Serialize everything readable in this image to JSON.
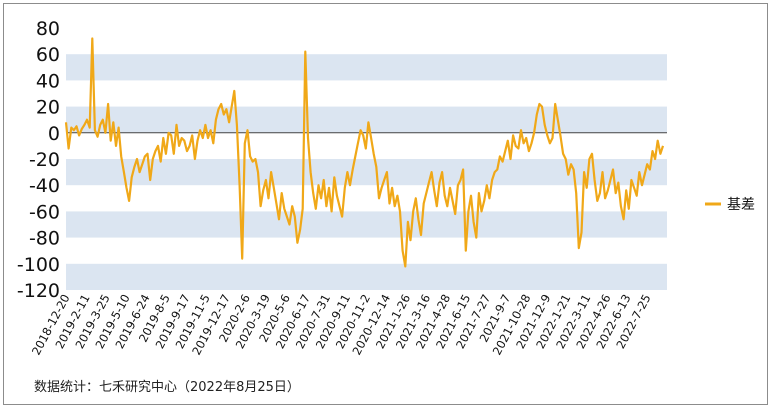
{
  "chart_data": {
    "type": "line",
    "title": "",
    "xlabel": "",
    "ylabel": "",
    "ylim": [
      -120,
      80
    ],
    "yticks": [
      80,
      60,
      40,
      20,
      0,
      -20,
      -40,
      -60,
      -80,
      -100,
      -120
    ],
    "x_tick_labels": [
      "2018-12-20",
      "2019-2-11",
      "2019-3-25",
      "2019-5-10",
      "2019-6-24",
      "2019-8-5",
      "2019-9-17",
      "2019-11-5",
      "2019-12-17",
      "2020-2-6",
      "2020-3-19",
      "2020-5-6",
      "2020-6-17",
      "2020-7-31",
      "2020-9-11",
      "2020-11-2",
      "2020-12-14",
      "2021-1-26",
      "2021-3-16",
      "2021-4-28",
      "2021-6-15",
      "2021-7-27",
      "2021-9-7",
      "2021-10-28",
      "2021-12-9",
      "2022-1-21",
      "2022-3-11",
      "2022-4-26",
      "2022-6-13",
      "2022-7-25"
    ],
    "grid": "alternating horizontal bands",
    "legend_position": "right",
    "series": [
      {
        "name": "基差",
        "color": "#f0a818",
        "values": [
          8,
          -12,
          4,
          2,
          5,
          -2,
          3,
          6,
          10,
          4,
          72,
          2,
          -3,
          6,
          10,
          0,
          22,
          -6,
          8,
          -10,
          4,
          -18,
          -30,
          -42,
          -52,
          -34,
          -26,
          -20,
          -30,
          -24,
          -18,
          -16,
          -36,
          -20,
          -14,
          -10,
          -22,
          -4,
          -16,
          0,
          -2,
          -16,
          6,
          -10,
          -4,
          -6,
          -14,
          -10,
          -2,
          -20,
          -6,
          2,
          -4,
          6,
          -4,
          2,
          -8,
          10,
          18,
          22,
          14,
          18,
          8,
          20,
          32,
          6,
          -40,
          -96,
          -8,
          2,
          -18,
          -22,
          -20,
          -30,
          -56,
          -44,
          -36,
          -50,
          -30,
          -42,
          -54,
          -66,
          -46,
          -58,
          -64,
          -70,
          -56,
          -64,
          -84,
          -74,
          -58,
          62,
          -4,
          -30,
          -46,
          -58,
          -40,
          -50,
          -36,
          -56,
          -42,
          -60,
          -34,
          -48,
          -56,
          -64,
          -42,
          -30,
          -40,
          -28,
          -18,
          -8,
          2,
          -2,
          -12,
          8,
          -4,
          -16,
          -26,
          -50,
          -42,
          -36,
          -30,
          -54,
          -42,
          -56,
          -48,
          -60,
          -90,
          -102,
          -68,
          -82,
          -60,
          -50,
          -66,
          -78,
          -54,
          -46,
          -38,
          -30,
          -44,
          -56,
          -38,
          -30,
          -48,
          -56,
          -42,
          -52,
          -62,
          -40,
          -36,
          -28,
          -90,
          -60,
          -48,
          -68,
          -80,
          -46,
          -60,
          -52,
          -40,
          -50,
          -36,
          -30,
          -28,
          -18,
          -22,
          -14,
          -6,
          -20,
          -2,
          -10,
          -12,
          2,
          -8,
          -4,
          -14,
          -8,
          0,
          14,
          22,
          20,
          6,
          -2,
          -8,
          -4,
          22,
          10,
          -2,
          -16,
          -20,
          -32,
          -24,
          -28,
          -46,
          -88,
          -76,
          -30,
          -42,
          -20,
          -16,
          -36,
          -52,
          -46,
          -30,
          -50,
          -44,
          -36,
          -28,
          -46,
          -38,
          -56,
          -66,
          -44,
          -58,
          -36,
          -42,
          -48,
          -30,
          -40,
          -32,
          -24,
          -28,
          -14,
          -20,
          -6,
          -16,
          -10
        ]
      }
    ]
  },
  "source_text": "数据统计：七禾研究中心（2022年8月25日）"
}
